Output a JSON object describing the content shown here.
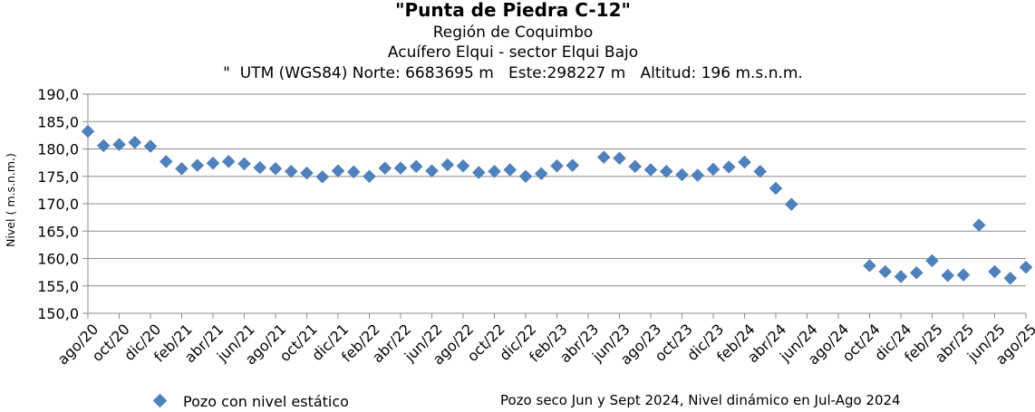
{
  "chart_data": {
    "type": "scatter",
    "title": "\"Punta de Piedra C-12\"",
    "subtitles": [
      "Región de Coquimbo",
      "Acuífero Elqui - sector Elqui Bajo",
      "\"  UTM (WGS84) Norte: 6683695 m   Este:298227 m   Altitud: 196 m.s.n.m."
    ],
    "ylabel": "Nivel ( m.s.n.m.)",
    "xlabel": "",
    "ylim": [
      150,
      190
    ],
    "yticks": [
      "190,0",
      "185,0",
      "180,0",
      "175,0",
      "170,0",
      "165,0",
      "160,0",
      "155,0",
      "150,0"
    ],
    "ytick_values": [
      190,
      185,
      180,
      175,
      170,
      165,
      160,
      155,
      150
    ],
    "xticks": [
      "ago/20",
      "oct/20",
      "dic/20",
      "feb/21",
      "abr/21",
      "jun/21",
      "ago/21",
      "oct/21",
      "dic/21",
      "feb/22",
      "abr/22",
      "jun/22",
      "ago/22",
      "oct/22",
      "dic/22",
      "feb/23",
      "abr/23",
      "jun/23",
      "ago/23",
      "oct/23",
      "dic/23",
      "feb/24",
      "abr/24",
      "jun/24",
      "ago/24",
      "oct/24",
      "dic/24",
      "feb/25",
      "abr/25",
      "jun/25",
      "ago/25"
    ],
    "grid": "horizontal",
    "marker_color": "#4f81bd",
    "series": [
      {
        "name": "Pozo con nivel estático",
        "points": [
          [
            "ago/20",
            183.2
          ],
          [
            "sep/20",
            180.6
          ],
          [
            "oct/20",
            180.8
          ],
          [
            "nov/20",
            181.2
          ],
          [
            "dic/20",
            180.5
          ],
          [
            "ene/21",
            177.7
          ],
          [
            "feb/21",
            176.4
          ],
          [
            "mar/21",
            177.0
          ],
          [
            "abr/21",
            177.4
          ],
          [
            "may/21",
            177.7
          ],
          [
            "jun/21",
            177.3
          ],
          [
            "jul/21",
            176.6
          ],
          [
            "ago/21",
            176.4
          ],
          [
            "sep/21",
            175.9
          ],
          [
            "oct/21",
            175.6
          ],
          [
            "nov/21",
            174.9
          ],
          [
            "dic/21",
            176.0
          ],
          [
            "ene/22",
            175.8
          ],
          [
            "feb/22",
            175.0
          ],
          [
            "mar/22",
            176.5
          ],
          [
            "abr/22",
            176.5
          ],
          [
            "may/22",
            176.8
          ],
          [
            "jun/22",
            176.0
          ],
          [
            "jul/22",
            177.1
          ],
          [
            "ago/22",
            176.9
          ],
          [
            "sep/22",
            175.7
          ],
          [
            "oct/22",
            175.9
          ],
          [
            "nov/22",
            176.2
          ],
          [
            "dic/22",
            175.0
          ],
          [
            "ene/23",
            175.5
          ],
          [
            "feb/23",
            176.9
          ],
          [
            "mar/23",
            177.0
          ],
          [
            "may/23",
            178.5
          ],
          [
            "jun/23",
            178.3
          ],
          [
            "jul/23",
            176.8
          ],
          [
            "ago/23",
            176.2
          ],
          [
            "sep/23",
            175.9
          ],
          [
            "oct/23",
            175.3
          ],
          [
            "nov/23",
            175.2
          ],
          [
            "dic/23",
            176.3
          ],
          [
            "ene/24",
            176.7
          ],
          [
            "feb/24",
            177.6
          ],
          [
            "mar/24",
            175.9
          ],
          [
            "abr/24",
            172.8
          ],
          [
            "may/24",
            169.9
          ],
          [
            "oct/24",
            158.7
          ],
          [
            "nov/24",
            157.6
          ],
          [
            "dic/24",
            156.7
          ],
          [
            "ene/25",
            157.4
          ],
          [
            "feb/25",
            159.6
          ],
          [
            "mar/25",
            156.9
          ],
          [
            "abr/25",
            157.0
          ],
          [
            "may/25",
            166.1
          ],
          [
            "jun/25",
            157.6
          ],
          [
            "jul/25",
            156.4
          ],
          [
            "ago/25",
            158.4
          ]
        ]
      }
    ],
    "legend": {
      "label": "Pozo con nivel estático",
      "position": "bottom-left"
    },
    "annotation": "Pozo seco Jun y Sept 2024, Nivel dinámico en Jul-Ago 2024"
  }
}
